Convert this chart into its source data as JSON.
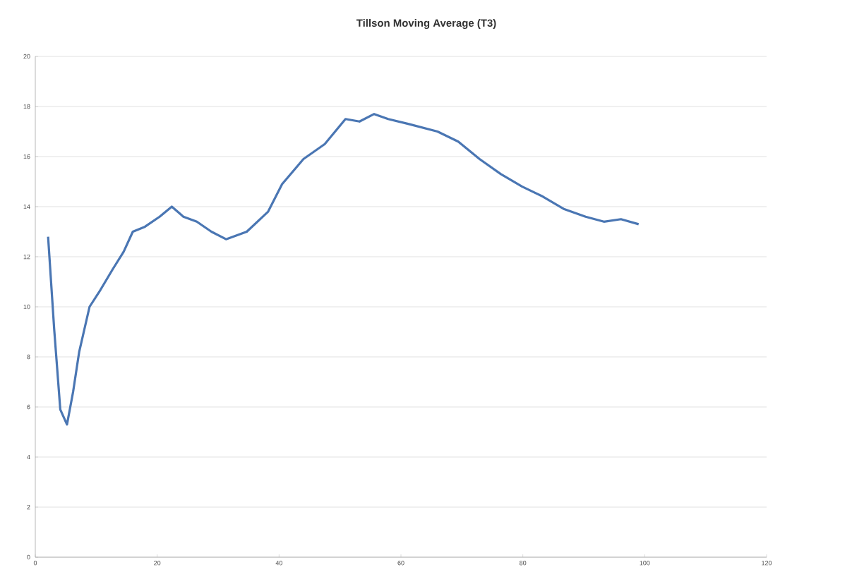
{
  "chart_data": {
    "type": "line",
    "title": "Tillson Moving Average (T3)",
    "x": [
      2.1,
      3.1,
      4.1,
      5.2,
      6.2,
      7.2,
      8.9,
      10.5,
      12.7,
      14.5,
      16,
      18,
      20.4,
      22.4,
      24.3,
      26.5,
      28.9,
      31.3,
      34.7,
      38.2,
      40.5,
      44,
      47.5,
      50.9,
      53.2,
      55.6,
      57.9,
      61.3,
      66,
      69.4,
      72.9,
      76.4,
      79.9,
      83.3,
      86.8,
      90.3,
      93.3,
      96.1,
      99
    ],
    "series": [
      {
        "color": "#4a76b3",
        "values": [
          12.8,
          9.1,
          5.9,
          5.3,
          6.6,
          8.2,
          10.0,
          10.6,
          11.5,
          12.2,
          13.0,
          13.2,
          13.6,
          14.0,
          13.6,
          13.4,
          13.0,
          12.7,
          13.0,
          13.8,
          14.9,
          15.9,
          16.5,
          17.5,
          17.4,
          17.7,
          17.5,
          17.3,
          17.0,
          16.6,
          15.9,
          15.3,
          14.8,
          14.4,
          13.9,
          13.6,
          13.4,
          13.5,
          13.3
        ]
      }
    ],
    "xlim": [
      0,
      120
    ],
    "xticks": [
      0,
      20,
      40,
      60,
      80,
      100,
      120
    ],
    "ylim": [
      0,
      20
    ],
    "yticks": [
      0,
      2,
      4,
      6,
      8,
      10,
      12,
      14,
      16,
      18,
      20
    ],
    "grid": "y",
    "marker": "none",
    "line_style": "solid"
  }
}
